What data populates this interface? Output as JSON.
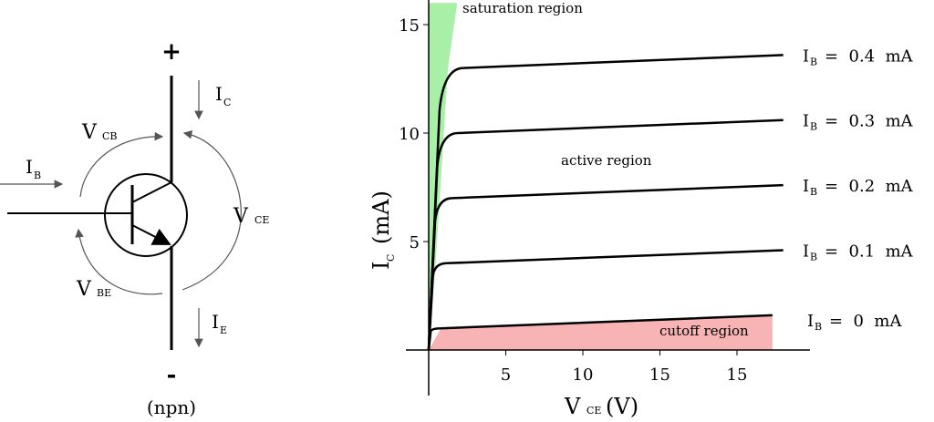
{
  "circuit": {
    "plus_sign": "+",
    "minus_sign": "-",
    "caption": "(npn)",
    "labels": {
      "ic_main": "I",
      "ic_sub": "C",
      "ib_main": "I",
      "ib_sub": "B",
      "ie_main": "I",
      "ie_sub": "E",
      "vcb_main": "V",
      "vcb_sub": "CB",
      "vce_main": "V",
      "vce_sub": "CE",
      "vbe_main": "V",
      "vbe_sub": "BE"
    },
    "colors": {
      "plus": "#e02020",
      "minus": "#2020e0",
      "line": "#000000",
      "arrow": "#555555"
    }
  },
  "chart_data": {
    "type": "line",
    "xlabel_main": "V",
    "xlabel_sub": "CE",
    "xlabel_unit": "(V)",
    "ylabel_main": "I",
    "ylabel_sub": "C",
    "ylabel_unit": "(mA)",
    "xtick_labels": [
      "5",
      "10",
      "15",
      "15"
    ],
    "ytick_labels": [
      "5",
      "10",
      "15"
    ],
    "series": [
      {
        "name": "IB = 0.4 mA",
        "label_main": "I",
        "label_sub": "B",
        "label_rest": "=  0.4  mA",
        "sat_ic": 13.0,
        "end_ic": 13.6
      },
      {
        "name": "IB = 0.3 mA",
        "label_main": "I",
        "label_sub": "B",
        "label_rest": "=  0.3  mA",
        "sat_ic": 10.0,
        "end_ic": 10.6
      },
      {
        "name": "IB = 0.2 mA",
        "label_main": "I",
        "label_sub": "B",
        "label_rest": "=  0.2  mA",
        "sat_ic": 7.0,
        "end_ic": 7.6
      },
      {
        "name": "IB = 0.1 mA",
        "label_main": "I",
        "label_sub": "B",
        "label_rest": "=  0.1  mA",
        "sat_ic": 4.0,
        "end_ic": 4.6
      },
      {
        "name": "IB = 0 mA",
        "label_main": "I",
        "label_sub": "B",
        "label_rest": "=  0  mA",
        "sat_ic": 1.0,
        "end_ic": 1.6
      }
    ],
    "regions": {
      "saturation": "saturation  region",
      "active": "active  region",
      "cutoff": "cutoff  region"
    },
    "colors": {
      "saturation": "#a8f0a8",
      "cutoff": "#f8b4b4",
      "curve": "#000000"
    }
  }
}
